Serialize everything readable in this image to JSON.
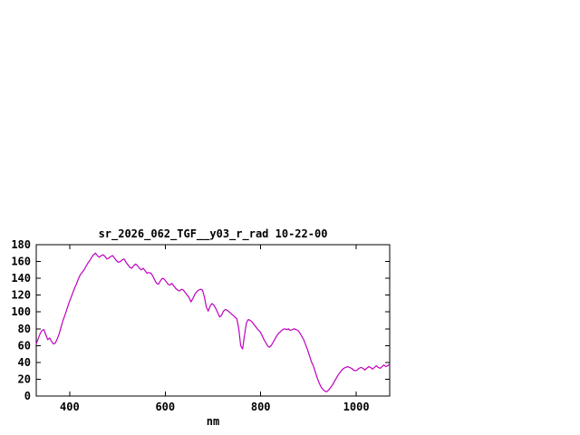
{
  "chart_data": {
    "type": "line",
    "title": "sr_2026_062_TGF__y03_r_rad 10-22-00",
    "xlabel": "nm",
    "ylabel": "",
    "xlim": [
      330,
      1070
    ],
    "ylim": [
      0,
      180
    ],
    "x_ticks": [
      400,
      600,
      800,
      1000
    ],
    "y_ticks": [
      0,
      20,
      40,
      60,
      80,
      100,
      120,
      140,
      160,
      180
    ],
    "grid": false,
    "legend_position": "none",
    "axis_color": "#000000",
    "line_color": "#bf00bf",
    "series": [
      {
        "name": "sr_2026_062_TGF__y03_r_rad",
        "points": [
          [
            330,
            62
          ],
          [
            334,
            68
          ],
          [
            338,
            74
          ],
          [
            342,
            78
          ],
          [
            346,
            79
          ],
          [
            350,
            73
          ],
          [
            354,
            67
          ],
          [
            358,
            69
          ],
          [
            362,
            65
          ],
          [
            366,
            62
          ],
          [
            370,
            63
          ],
          [
            374,
            68
          ],
          [
            378,
            74
          ],
          [
            382,
            82
          ],
          [
            386,
            90
          ],
          [
            390,
            96
          ],
          [
            394,
            103
          ],
          [
            398,
            110
          ],
          [
            402,
            116
          ],
          [
            406,
            122
          ],
          [
            410,
            128
          ],
          [
            414,
            133
          ],
          [
            418,
            139
          ],
          [
            422,
            144
          ],
          [
            426,
            147
          ],
          [
            430,
            150
          ],
          [
            434,
            154
          ],
          [
            438,
            158
          ],
          [
            442,
            161
          ],
          [
            446,
            165
          ],
          [
            450,
            168
          ],
          [
            454,
            170
          ],
          [
            458,
            167
          ],
          [
            462,
            165
          ],
          [
            466,
            167
          ],
          [
            470,
            168
          ],
          [
            474,
            166
          ],
          [
            478,
            163
          ],
          [
            482,
            164
          ],
          [
            486,
            166
          ],
          [
            490,
            167
          ],
          [
            494,
            164
          ],
          [
            498,
            161
          ],
          [
            502,
            159
          ],
          [
            506,
            160
          ],
          [
            510,
            162
          ],
          [
            514,
            163
          ],
          [
            518,
            159
          ],
          [
            522,
            156
          ],
          [
            526,
            153
          ],
          [
            530,
            152
          ],
          [
            534,
            155
          ],
          [
            538,
            157
          ],
          [
            542,
            155
          ],
          [
            546,
            152
          ],
          [
            550,
            150
          ],
          [
            554,
            152
          ],
          [
            558,
            149
          ],
          [
            562,
            146
          ],
          [
            566,
            147
          ],
          [
            570,
            146
          ],
          [
            574,
            143
          ],
          [
            578,
            138
          ],
          [
            582,
            134
          ],
          [
            586,
            133
          ],
          [
            590,
            137
          ],
          [
            594,
            140
          ],
          [
            598,
            139
          ],
          [
            602,
            136
          ],
          [
            606,
            133
          ],
          [
            610,
            132
          ],
          [
            614,
            134
          ],
          [
            618,
            131
          ],
          [
            622,
            128
          ],
          [
            626,
            126
          ],
          [
            630,
            125
          ],
          [
            634,
            127
          ],
          [
            638,
            126
          ],
          [
            642,
            123
          ],
          [
            646,
            120
          ],
          [
            650,
            117
          ],
          [
            654,
            112
          ],
          [
            658,
            116
          ],
          [
            662,
            121
          ],
          [
            666,
            124
          ],
          [
            670,
            126
          ],
          [
            674,
            127
          ],
          [
            678,
            126
          ],
          [
            682,
            118
          ],
          [
            686,
            106
          ],
          [
            690,
            101
          ],
          [
            694,
            107
          ],
          [
            698,
            110
          ],
          [
            702,
            108
          ],
          [
            706,
            104
          ],
          [
            710,
            99
          ],
          [
            714,
            94
          ],
          [
            718,
            96
          ],
          [
            722,
            101
          ],
          [
            726,
            103
          ],
          [
            730,
            102
          ],
          [
            734,
            100
          ],
          [
            738,
            98
          ],
          [
            742,
            96
          ],
          [
            746,
            94
          ],
          [
            750,
            92
          ],
          [
            754,
            80
          ],
          [
            758,
            60
          ],
          [
            762,
            56
          ],
          [
            766,
            72
          ],
          [
            770,
            87
          ],
          [
            774,
            91
          ],
          [
            778,
            90
          ],
          [
            782,
            88
          ],
          [
            786,
            85
          ],
          [
            790,
            82
          ],
          [
            794,
            79
          ],
          [
            798,
            77
          ],
          [
            802,
            73
          ],
          [
            806,
            68
          ],
          [
            810,
            64
          ],
          [
            814,
            60
          ],
          [
            818,
            58
          ],
          [
            822,
            60
          ],
          [
            826,
            64
          ],
          [
            830,
            68
          ],
          [
            834,
            72
          ],
          [
            838,
            75
          ],
          [
            842,
            77
          ],
          [
            846,
            79
          ],
          [
            850,
            80
          ],
          [
            854,
            79
          ],
          [
            858,
            80
          ],
          [
            862,
            78
          ],
          [
            866,
            79
          ],
          [
            870,
            80
          ],
          [
            874,
            79
          ],
          [
            878,
            78
          ],
          [
            882,
            75
          ],
          [
            886,
            71
          ],
          [
            890,
            67
          ],
          [
            894,
            61
          ],
          [
            898,
            55
          ],
          [
            902,
            48
          ],
          [
            906,
            41
          ],
          [
            910,
            36
          ],
          [
            914,
            29
          ],
          [
            918,
            22
          ],
          [
            922,
            16
          ],
          [
            926,
            11
          ],
          [
            930,
            8
          ],
          [
            934,
            6
          ],
          [
            938,
            5
          ],
          [
            942,
            7
          ],
          [
            946,
            10
          ],
          [
            950,
            13
          ],
          [
            954,
            17
          ],
          [
            958,
            21
          ],
          [
            962,
            25
          ],
          [
            966,
            28
          ],
          [
            970,
            31
          ],
          [
            974,
            33
          ],
          [
            978,
            34
          ],
          [
            982,
            35
          ],
          [
            986,
            34
          ],
          [
            990,
            33
          ],
          [
            994,
            31
          ],
          [
            998,
            30
          ],
          [
            1002,
            31
          ],
          [
            1006,
            33
          ],
          [
            1010,
            34
          ],
          [
            1014,
            33
          ],
          [
            1018,
            31
          ],
          [
            1022,
            33
          ],
          [
            1026,
            35
          ],
          [
            1030,
            34
          ],
          [
            1034,
            32
          ],
          [
            1038,
            34
          ],
          [
            1042,
            36
          ],
          [
            1046,
            34
          ],
          [
            1050,
            33
          ],
          [
            1054,
            35
          ],
          [
            1058,
            37
          ],
          [
            1062,
            35
          ],
          [
            1066,
            36
          ],
          [
            1070,
            38
          ]
        ]
      }
    ]
  }
}
